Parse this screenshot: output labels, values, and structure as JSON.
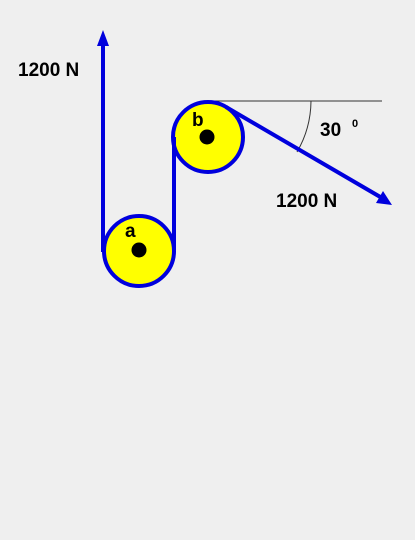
{
  "labels": {
    "force_top": "1200 N",
    "force_right": "1200 N",
    "angle_value": "30",
    "angle_unit": "0",
    "pulley_a": "a",
    "pulley_b": "b"
  },
  "colors": {
    "background": "#efefef",
    "belt": "#0000dd",
    "pulley_fill": "#ffff00",
    "axle": "#000000",
    "reference_line": "#333333"
  }
}
